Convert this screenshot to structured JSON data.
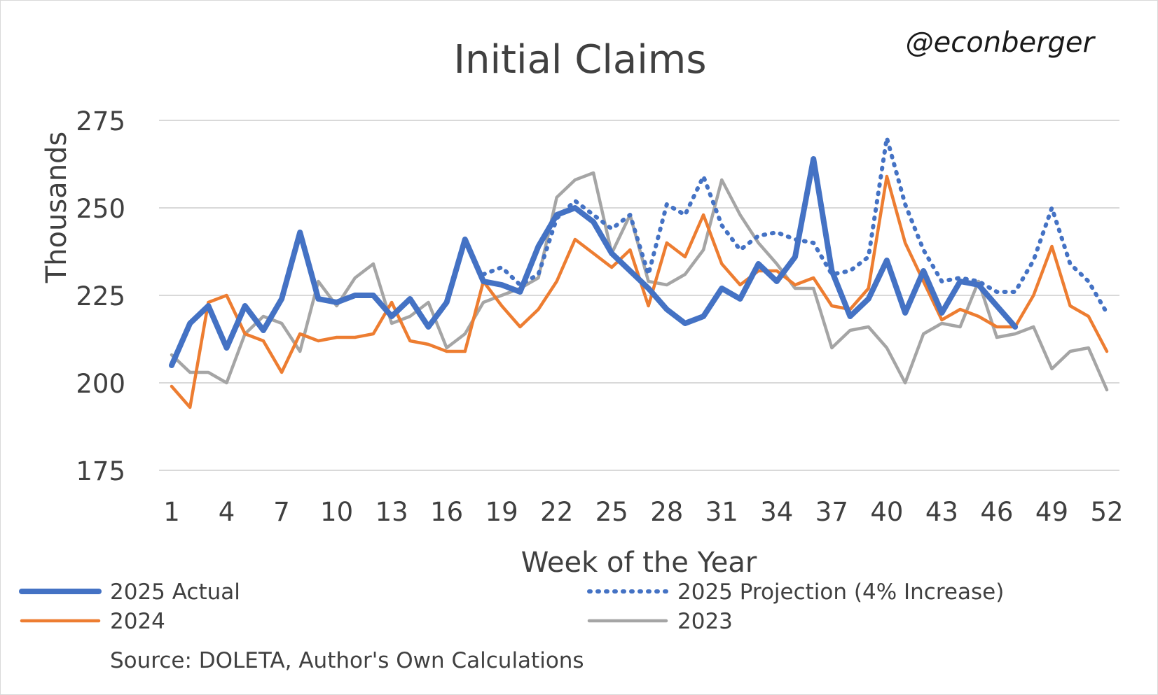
{
  "chart_data": {
    "type": "line",
    "title": "Initial Claims",
    "credit": "@econberger",
    "xlabel": "Week of the Year",
    "ylabel": "Thousands",
    "xlim": [
      1,
      52
    ],
    "ylim": [
      175,
      275
    ],
    "yticks": [
      175,
      200,
      225,
      250,
      275
    ],
    "xticks": [
      1,
      4,
      7,
      10,
      13,
      16,
      19,
      22,
      25,
      28,
      31,
      34,
      37,
      40,
      43,
      46,
      49,
      52
    ],
    "grid": true,
    "legend_position": "bottom",
    "source": "Source: DOLETA, Author's Own Calculations",
    "series": [
      {
        "name": "2023",
        "color": "#a5a5a5",
        "style": "solid",
        "x": [
          1,
          2,
          3,
          4,
          5,
          6,
          7,
          8,
          9,
          10,
          11,
          12,
          13,
          14,
          15,
          16,
          17,
          18,
          19,
          20,
          21,
          22,
          23,
          24,
          25,
          26,
          27,
          28,
          29,
          30,
          31,
          32,
          33,
          34,
          35,
          36,
          37,
          38,
          39,
          40,
          41,
          42,
          43,
          44,
          45,
          46,
          47,
          48,
          49,
          50,
          51,
          52
        ],
        "values": [
          208,
          203,
          203,
          200,
          214,
          219,
          217,
          209,
          229,
          222,
          230,
          234,
          217,
          219,
          223,
          210,
          214,
          223,
          225,
          227,
          230,
          253,
          258,
          260,
          237,
          248,
          229,
          228,
          231,
          238,
          258,
          248,
          240,
          234,
          227,
          227,
          210,
          215,
          216,
          210,
          200,
          214,
          217,
          216,
          229,
          213,
          214,
          216,
          204,
          209,
          210,
          198
        ]
      },
      {
        "name": "2024",
        "color": "#ed7d31",
        "style": "solid",
        "x": [
          1,
          2,
          3,
          4,
          5,
          6,
          7,
          8,
          9,
          10,
          11,
          12,
          13,
          14,
          15,
          16,
          17,
          18,
          19,
          20,
          21,
          22,
          23,
          24,
          25,
          26,
          27,
          28,
          29,
          30,
          31,
          32,
          33,
          34,
          35,
          36,
          37,
          38,
          39,
          40,
          41,
          42,
          43,
          44,
          45,
          46,
          47,
          48,
          49,
          50,
          51,
          52
        ],
        "values": [
          199,
          193,
          223,
          225,
          214,
          212,
          203,
          214,
          212,
          213,
          213,
          214,
          223,
          212,
          211,
          209,
          209,
          229,
          222,
          216,
          221,
          229,
          241,
          237,
          233,
          238,
          222,
          240,
          236,
          248,
          234,
          228,
          232,
          232,
          228,
          230,
          222,
          221,
          227,
          259,
          240,
          229,
          218,
          221,
          219,
          216,
          216,
          225,
          239,
          222,
          219,
          209
        ]
      },
      {
        "name": "2025 Projection (4% Increase)",
        "color": "#4472c4",
        "style": "dotted",
        "x": [
          18,
          19,
          20,
          21,
          22,
          23,
          24,
          25,
          26,
          27,
          28,
          29,
          30,
          31,
          32,
          33,
          34,
          35,
          36,
          37,
          38,
          39,
          40,
          41,
          42,
          43,
          44,
          45,
          46,
          47,
          48,
          49,
          50,
          51,
          52
        ],
        "values": [
          231,
          233,
          228,
          231,
          247,
          252,
          248,
          244,
          248,
          231,
          251,
          248,
          259,
          245,
          238,
          242,
          243,
          241,
          240,
          231,
          232,
          236,
          270,
          251,
          238,
          229,
          230,
          229,
          226,
          226,
          235,
          250,
          234,
          229,
          220
        ]
      },
      {
        "name": "2025 Actual",
        "color": "#4472c4",
        "style": "thick",
        "x": [
          1,
          2,
          3,
          4,
          5,
          6,
          7,
          8,
          9,
          10,
          11,
          12,
          13,
          14,
          15,
          16,
          17,
          18,
          19,
          20,
          21,
          22,
          23,
          24,
          25,
          26,
          27,
          28,
          29,
          30,
          31,
          32,
          33,
          34,
          35,
          36,
          37,
          38,
          39,
          40,
          41,
          42,
          43,
          44,
          45,
          46,
          47
        ],
        "values": [
          205,
          217,
          222,
          210,
          222,
          215,
          224,
          243,
          224,
          223,
          225,
          225,
          219,
          224,
          216,
          223,
          241,
          229,
          228,
          226,
          239,
          248,
          250,
          246,
          237,
          232,
          227,
          221,
          217,
          219,
          227,
          224,
          234,
          229,
          236,
          264,
          232,
          219,
          224,
          235,
          220,
          232,
          220,
          229,
          228,
          222,
          216
        ]
      }
    ],
    "legend": [
      {
        "name": "2025 Actual",
        "style": "thick",
        "color": "#4472c4"
      },
      {
        "name": "2025 Projection (4% Increase)",
        "style": "dotted",
        "color": "#4472c4"
      },
      {
        "name": "2024",
        "style": "solid",
        "color": "#ed7d31"
      },
      {
        "name": "2023",
        "style": "solid",
        "color": "#a5a5a5"
      }
    ]
  }
}
